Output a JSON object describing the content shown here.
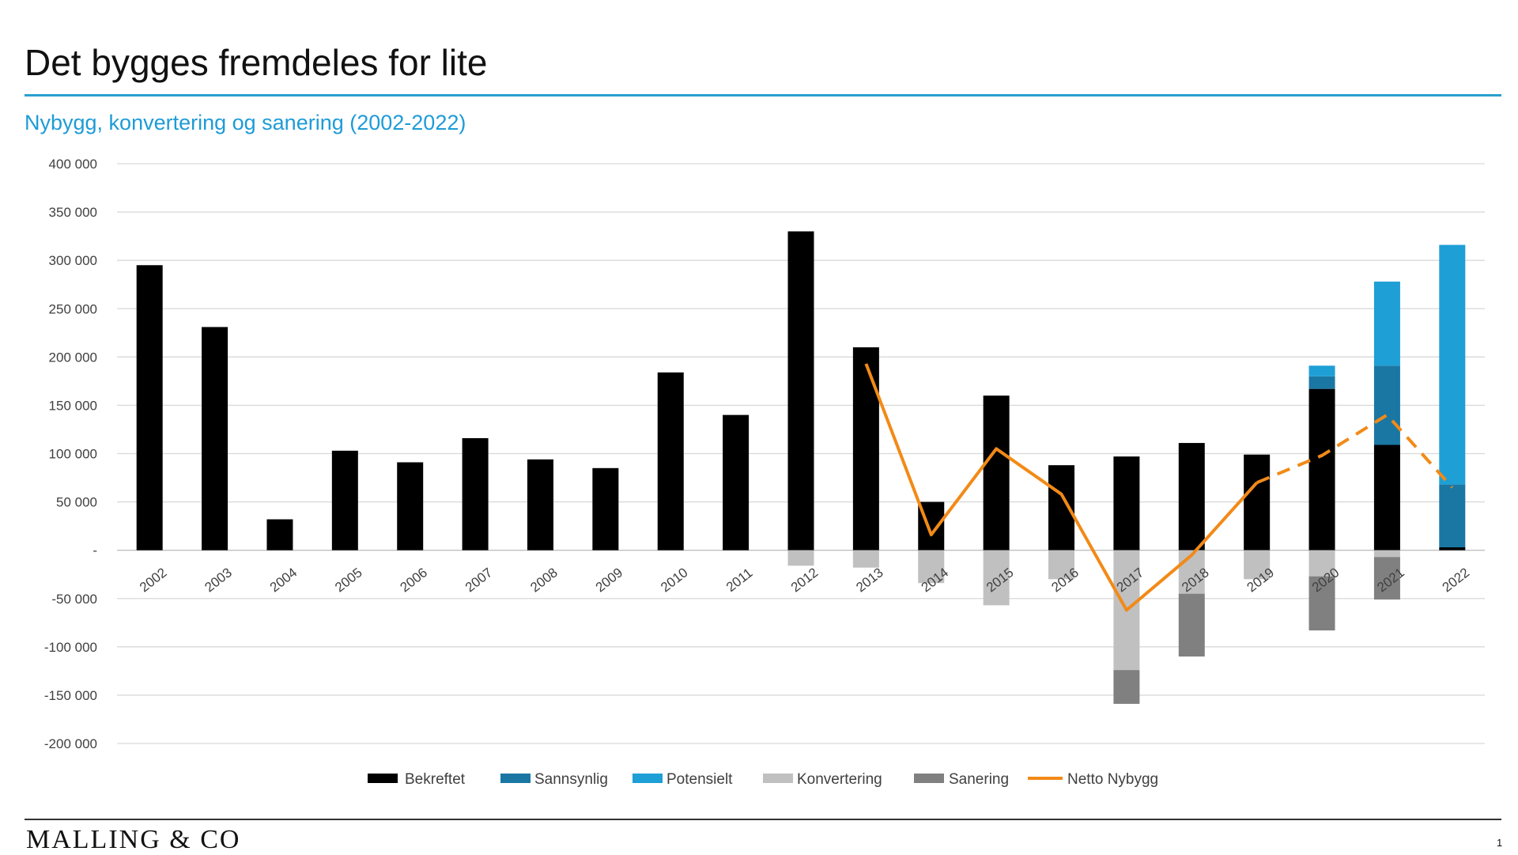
{
  "title": "Det bygges fremdeles for lite",
  "subtitle": "Nybygg, konvertering og sanering (2002-2022)",
  "footer": {
    "logo": "MALLING & CO",
    "page_number": "1"
  },
  "colors": {
    "bekreftet": "#000000",
    "sannsynlig": "#1a77a3",
    "potensielt": "#1e9fd6",
    "konvertering": "#c0c0c0",
    "sanering": "#808080",
    "netto": "#f28a17",
    "title_rule": "#2aa0cf",
    "subtitle": "#1e9bd7"
  },
  "chart_data": {
    "type": "bar",
    "stacked": true,
    "title": "Nybygg, konvertering og sanering (2002-2022)",
    "categories": [
      "2002",
      "2003",
      "2004",
      "2005",
      "2006",
      "2007",
      "2008",
      "2009",
      "2010",
      "2011",
      "2012",
      "2013",
      "2014",
      "2015",
      "2016",
      "2017",
      "2018",
      "2019",
      "2020",
      "2021",
      "2022"
    ],
    "ylim": [
      -200000,
      400000
    ],
    "yticks": [
      {
        "value": 400000,
        "label": "400 000"
      },
      {
        "value": 350000,
        "label": "350 000"
      },
      {
        "value": 300000,
        "label": "300 000"
      },
      {
        "value": 250000,
        "label": "250 000"
      },
      {
        "value": 200000,
        "label": "200 000"
      },
      {
        "value": 150000,
        "label": "150 000"
      },
      {
        "value": 100000,
        "label": "100 000"
      },
      {
        "value": 50000,
        "label": "50 000"
      },
      {
        "value": 0,
        "label": "-"
      },
      {
        "value": -50000,
        "label": "-50 000"
      },
      {
        "value": -100000,
        "label": "-100 000"
      },
      {
        "value": -150000,
        "label": "-150 000"
      },
      {
        "value": -200000,
        "label": "-200 000"
      }
    ],
    "grid": true,
    "legend_position": "bottom",
    "series": [
      {
        "name": "Bekreftet",
        "key": "bekreftet",
        "type": "bar",
        "values": [
          295000,
          231000,
          32000,
          103000,
          91000,
          116000,
          94000,
          85000,
          184000,
          140000,
          330000,
          210000,
          50000,
          160000,
          88000,
          97000,
          111000,
          99000,
          167000,
          109000,
          3000
        ]
      },
      {
        "name": "Sannsynlig",
        "key": "sannsynlig",
        "type": "bar",
        "values": [
          0,
          0,
          0,
          0,
          0,
          0,
          0,
          0,
          0,
          0,
          0,
          0,
          0,
          0,
          0,
          0,
          0,
          0,
          13000,
          82000,
          65000
        ]
      },
      {
        "name": "Potensielt",
        "key": "potensielt",
        "type": "bar",
        "values": [
          0,
          0,
          0,
          0,
          0,
          0,
          0,
          0,
          0,
          0,
          0,
          0,
          0,
          0,
          0,
          0,
          0,
          0,
          11000,
          87000,
          248000
        ]
      },
      {
        "name": "Konvertering",
        "key": "konvertering",
        "type": "bar",
        "values": [
          0,
          0,
          0,
          0,
          0,
          0,
          0,
          0,
          0,
          0,
          -16000,
          -18000,
          -34000,
          -57000,
          -30000,
          -124000,
          -45000,
          -30000,
          -27000,
          -7000,
          0
        ]
      },
      {
        "name": "Sanering",
        "key": "sanering",
        "type": "bar",
        "values": [
          0,
          0,
          0,
          0,
          0,
          0,
          0,
          0,
          0,
          0,
          0,
          0,
          0,
          0,
          0,
          -35000,
          -65000,
          0,
          -56000,
          -44000,
          0
        ]
      },
      {
        "name": "Netto Nybygg",
        "key": "netto",
        "type": "line",
        "values": [
          null,
          null,
          null,
          null,
          null,
          null,
          null,
          null,
          null,
          null,
          null,
          193000,
          16000,
          105000,
          58000,
          -62000,
          -5000,
          70000,
          98000,
          140000,
          65000
        ],
        "dashed_from_index": 17
      }
    ]
  }
}
